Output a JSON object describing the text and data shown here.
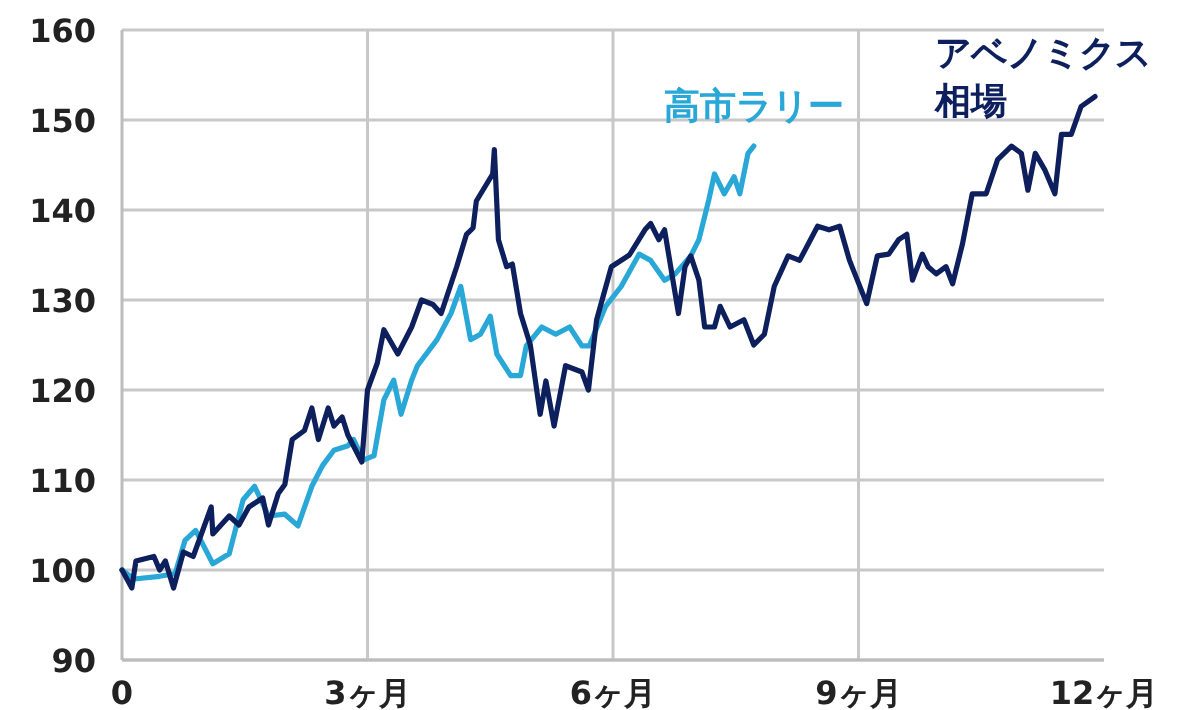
{
  "chart_data": {
    "type": "line",
    "xlim": [
      0,
      12
    ],
    "ylim": [
      90,
      160
    ],
    "xticks": [
      0,
      {
        "value": 3,
        "label": "3ヶ月"
      },
      {
        "value": 6,
        "label": "6ヶ月"
      },
      {
        "value": 9,
        "label": "9ヶ月"
      },
      {
        "value": 12,
        "label": "12ヶ月"
      }
    ],
    "yticks": [
      90,
      100,
      110,
      120,
      130,
      140,
      150,
      160
    ],
    "grid": true,
    "marker": "none",
    "line_style": "solid",
    "series": [
      {
        "name": "アベノミクス相場",
        "color": "#0d1f5c",
        "x": [
          0,
          0.12,
          0.17,
          0.39,
          0.46,
          0.53,
          0.63,
          0.75,
          0.87,
          1.09,
          1.11,
          1.31,
          1.43,
          1.55,
          1.72,
          1.79,
          1.91,
          1.99,
          2.08,
          2.23,
          2.32,
          2.4,
          2.52,
          2.59,
          2.69,
          2.76,
          2.93,
          3.0,
          3.12,
          3.2,
          3.37,
          3.54,
          3.66,
          3.8,
          3.9,
          4.09,
          4.21,
          4.29,
          4.33,
          4.53,
          4.55,
          4.6,
          4.7,
          4.77,
          4.87,
          4.99,
          5.11,
          5.18,
          5.28,
          5.42,
          5.62,
          5.7,
          5.8,
          5.98,
          6.2,
          6.39,
          6.46,
          6.56,
          6.63,
          6.8,
          6.88,
          6.95,
          7.05,
          7.12,
          7.24,
          7.31,
          7.43,
          7.6,
          7.72,
          7.85,
          7.97,
          8.14,
          8.28,
          8.5,
          8.64,
          8.77,
          8.89,
          9.1,
          9.23,
          9.37,
          9.49,
          9.59,
          9.66,
          9.78,
          9.85,
          9.95,
          10.07,
          10.15,
          10.27,
          10.39,
          10.56,
          10.63,
          10.7,
          10.87,
          10.99,
          11.07,
          11.16,
          11.28,
          11.4,
          11.48,
          11.6,
          11.72,
          11.89
        ],
        "values": [
          100,
          98,
          101,
          101.5,
          100,
          101,
          98,
          102,
          101.5,
          107,
          104,
          106,
          105,
          107,
          108,
          105,
          108.5,
          109.5,
          114.5,
          115.5,
          118,
          114.5,
          118,
          116,
          117,
          115,
          112,
          120,
          123,
          126.7,
          124,
          127,
          130,
          129.5,
          128.5,
          133.7,
          137.3,
          138,
          141,
          144,
          146.7,
          136.7,
          133.7,
          134,
          128.5,
          125,
          117.3,
          121,
          116,
          122.7,
          122,
          120,
          127.8,
          133.7,
          135,
          137.8,
          138.5,
          136.7,
          137.8,
          128.5,
          133.7,
          134.9,
          132.2,
          127,
          127,
          129.3,
          127,
          127.8,
          125,
          126.2,
          131.5,
          134.9,
          134.4,
          138.2,
          137.8,
          138.2,
          134.4,
          129.6,
          134.9,
          135.1,
          136.7,
          137.3,
          132.2,
          135.1,
          133.7,
          132.9,
          133.7,
          131.8,
          136.2,
          141.8,
          141.8,
          143.7,
          145.6,
          147.1,
          146.3,
          142.2,
          146.3,
          144.4,
          141.8,
          148.4,
          148.4,
          151.5,
          152.6
        ]
      },
      {
        "name": "高市ラリー",
        "color": "#29a8d8",
        "x": [
          0,
          0.15,
          0.46,
          0.65,
          0.77,
          0.9,
          1.11,
          1.31,
          1.48,
          1.62,
          1.79,
          1.99,
          2.15,
          2.32,
          2.45,
          2.59,
          2.76,
          2.83,
          2.95,
          3.08,
          3.2,
          3.32,
          3.41,
          3.54,
          3.61,
          3.85,
          4.02,
          4.14,
          4.26,
          4.38,
          4.5,
          4.58,
          4.75,
          4.87,
          4.94,
          5.13,
          5.3,
          5.47,
          5.62,
          5.71,
          5.91,
          6.1,
          6.32,
          6.46,
          6.63,
          6.76,
          6.95,
          7.05,
          7.17,
          7.24,
          7.36,
          7.48,
          7.55,
          7.65,
          7.72
        ],
        "values": [
          100,
          99,
          99.3,
          99.6,
          103.3,
          104.4,
          100.7,
          101.8,
          107.8,
          109.3,
          106,
          106.2,
          104.9,
          109.3,
          111.6,
          113.3,
          113.8,
          114.5,
          112.2,
          112.7,
          118.9,
          121.1,
          117.3,
          121.1,
          122.7,
          125.6,
          128.5,
          131.5,
          125.6,
          126.2,
          128.2,
          124,
          121.6,
          121.6,
          124.9,
          127,
          126.2,
          127,
          124.9,
          124.9,
          129.3,
          131.5,
          135.1,
          134.4,
          132.2,
          132.9,
          134.9,
          136.7,
          141.1,
          144,
          141.8,
          143.7,
          141.8,
          146.3,
          147.1
        ]
      }
    ]
  }
}
